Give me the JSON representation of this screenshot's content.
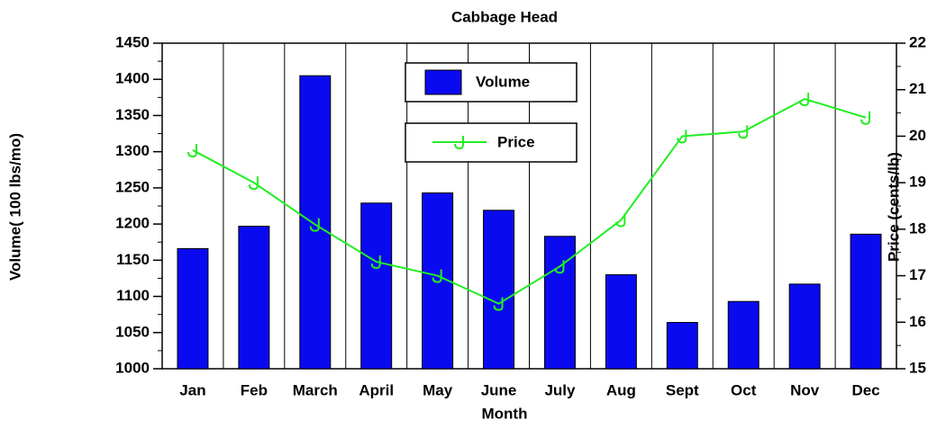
{
  "chart_data": {
    "type": "bar_line",
    "title": "Cabbage Head",
    "x_label": "Month",
    "y_label": "Volume( 100 lbs/mo)",
    "y2_label": "Price (cents/lb)",
    "categories": [
      "Jan",
      "Feb",
      "March",
      "April",
      "May",
      "June",
      "July",
      "Aug",
      "Sept",
      "Oct",
      "Nov",
      "Dec"
    ],
    "series": [
      {
        "name": "Volume",
        "type": "bar",
        "color": "#0a0af0",
        "values": [
          1166,
          1197,
          1405,
          1229,
          1243,
          1219,
          1183,
          1130,
          1064,
          1093,
          1117,
          1186
        ]
      },
      {
        "name": "Price",
        "type": "line",
        "axis": "y2",
        "color": "#22ee22",
        "values": [
          19.7,
          19.0,
          18.1,
          17.3,
          17.0,
          16.4,
          17.2,
          18.2,
          20.0,
          20.1,
          20.8,
          20.4
        ]
      }
    ],
    "ylim": [
      1000,
      1450
    ],
    "yticks": [
      1000,
      1050,
      1100,
      1150,
      1200,
      1250,
      1300,
      1350,
      1400,
      1450
    ],
    "y2lim": [
      15,
      22
    ],
    "y2ticks": [
      15,
      16,
      17,
      18,
      19,
      20,
      21,
      22
    ]
  }
}
